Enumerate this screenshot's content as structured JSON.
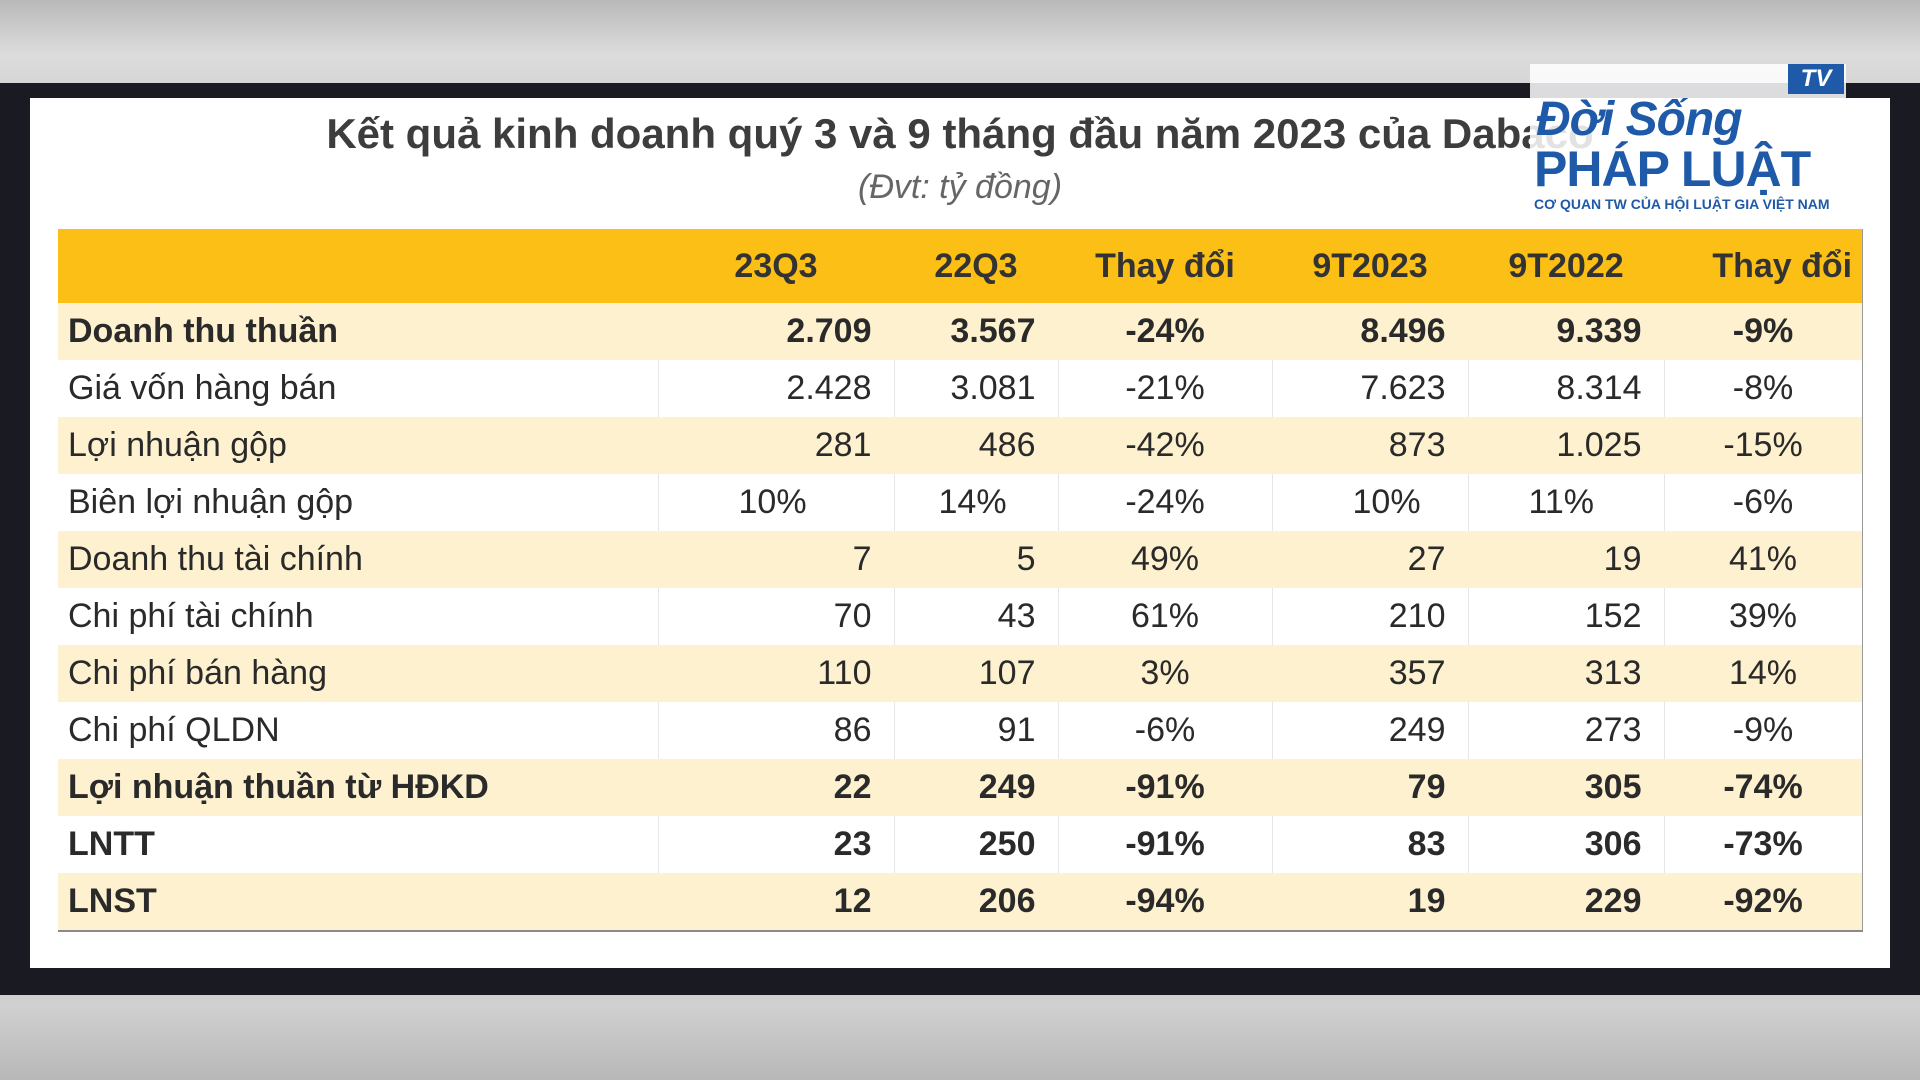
{
  "title": "Kết quả kinh doanh quý 3 và 9 tháng đầu năm 2023 của Dabaco",
  "unit": "(Đvt: tỷ đồng)",
  "logo": {
    "tv": "TV",
    "line1": "Đời Sống",
    "line2": "PHÁP LUẬT",
    "tagline": "CƠ QUAN TW CỦA HỘI LUẬT GIA VIỆT NAM"
  },
  "table": {
    "headers": [
      "",
      "23Q3",
      "22Q3",
      "Thay đổi",
      "9T2023",
      "9T2022",
      "Thay đổi"
    ],
    "rows": [
      {
        "label": "Doanh thu thuần",
        "q3_2023": "2.709",
        "q3_2022": "3.567",
        "q_change": "-24%",
        "m9_2023": "8.496",
        "m9_2022": "9.339",
        "m9_change": "-9%",
        "bold": true
      },
      {
        "label": "Giá vốn hàng bán",
        "q3_2023": "2.428",
        "q3_2022": "3.081",
        "q_change": "-21%",
        "m9_2023": "7.623",
        "m9_2022": "8.314",
        "m9_change": "-8%",
        "bold": false
      },
      {
        "label": "Lợi nhuận gộp",
        "q3_2023": "281",
        "q3_2022": "486",
        "q_change": "-42%",
        "m9_2023": "873",
        "m9_2022": "1.025",
        "m9_change": "-15%",
        "bold": false
      },
      {
        "label": "Biên lợi nhuận gộp",
        "q3_2023": "10%",
        "q3_2022": "14%",
        "q_change": "-24%",
        "m9_2023": "10%",
        "m9_2022": "11%",
        "m9_change": "-6%",
        "bold": false
      },
      {
        "label": "Doanh thu tài chính",
        "q3_2023": "7",
        "q3_2022": "5",
        "q_change": "49%",
        "m9_2023": "27",
        "m9_2022": "19",
        "m9_change": "41%",
        "bold": false
      },
      {
        "label": "Chi phí tài chính",
        "q3_2023": "70",
        "q3_2022": "43",
        "q_change": "61%",
        "m9_2023": "210",
        "m9_2022": "152",
        "m9_change": "39%",
        "bold": false
      },
      {
        "label": "Chi phí bán hàng",
        "q3_2023": "110",
        "q3_2022": "107",
        "q_change": "3%",
        "m9_2023": "357",
        "m9_2022": "313",
        "m9_change": "14%",
        "bold": false
      },
      {
        "label": "Chi phí QLDN",
        "q3_2023": "86",
        "q3_2022": "91",
        "q_change": "-6%",
        "m9_2023": "249",
        "m9_2022": "273",
        "m9_change": "-9%",
        "bold": false
      },
      {
        "label": "Lợi nhuận thuần từ HĐKD",
        "q3_2023": "22",
        "q3_2022": "249",
        "q_change": "-91%",
        "m9_2023": "79",
        "m9_2022": "305",
        "m9_change": "-74%",
        "bold": true
      },
      {
        "label": "LNTT",
        "q3_2023": "23",
        "q3_2022": "250",
        "q_change": "-91%",
        "m9_2023": "83",
        "m9_2022": "306",
        "m9_change": "-73%",
        "bold": true
      },
      {
        "label": "LNST",
        "q3_2023": "12",
        "q3_2022": "206",
        "q_change": "-94%",
        "m9_2023": "19",
        "m9_2022": "229",
        "m9_change": "-92%",
        "bold": true
      }
    ]
  },
  "colors": {
    "header_bg": "#fbbf16",
    "band_row": "#fdf1cf",
    "logo_blue": "#1e5aa8",
    "frame": "#1a1a22"
  }
}
